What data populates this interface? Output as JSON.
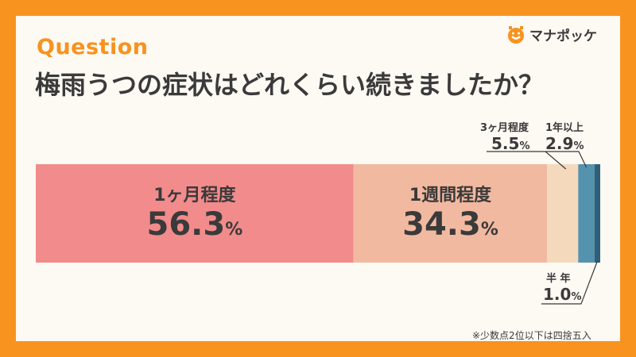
{
  "header": {
    "question_label": "Question",
    "title": "梅雨うつの症状はどれくらい続きましたか？"
  },
  "brand": {
    "name": "マナポッケ",
    "icon": "manapokke-logo-icon"
  },
  "footnote": "※少数点2位以下は四捨五入",
  "colors": {
    "background": "#f7931e",
    "card": "#fdf9f3",
    "accent": "#f7931e",
    "text": "#3a3a3a"
  },
  "chart_data": {
    "type": "bar",
    "orientation": "horizontal-stacked-100",
    "unit": "%",
    "categories": [
      "1ヶ月程度",
      "1週間程度",
      "3ヶ月程度",
      "1年以上",
      "半 年"
    ],
    "values": [
      56.3,
      34.3,
      5.5,
      2.9,
      1.0
    ],
    "value_labels": [
      "56.3",
      "34.3",
      "5.5",
      "2.9",
      "1.0"
    ],
    "colors": [
      "#f28b8b",
      "#f2b9a1",
      "#f5d9bd",
      "#5592ad",
      "#2f5f7a"
    ]
  }
}
